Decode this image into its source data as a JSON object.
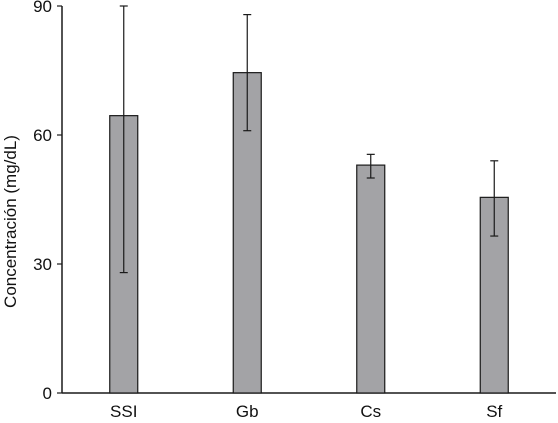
{
  "chart_data": {
    "type": "bar",
    "title": "",
    "xlabel": "",
    "ylabel": "Concentración (mg/dL)",
    "categories": [
      "SSI",
      "Gb",
      "Cs",
      "Sf"
    ],
    "values": [
      64.5,
      74.5,
      53.0,
      45.5
    ],
    "error_low": [
      28.0,
      61.0,
      50.0,
      36.5
    ],
    "error_high": [
      90.0,
      88.0,
      55.5,
      54.0
    ],
    "ylim": [
      0,
      90
    ],
    "yticks": [
      0,
      30,
      60,
      90
    ],
    "grid": false,
    "legend": "none",
    "bar_color": "#a3a3a6",
    "bar_edge_color": "#1a1a1a"
  }
}
